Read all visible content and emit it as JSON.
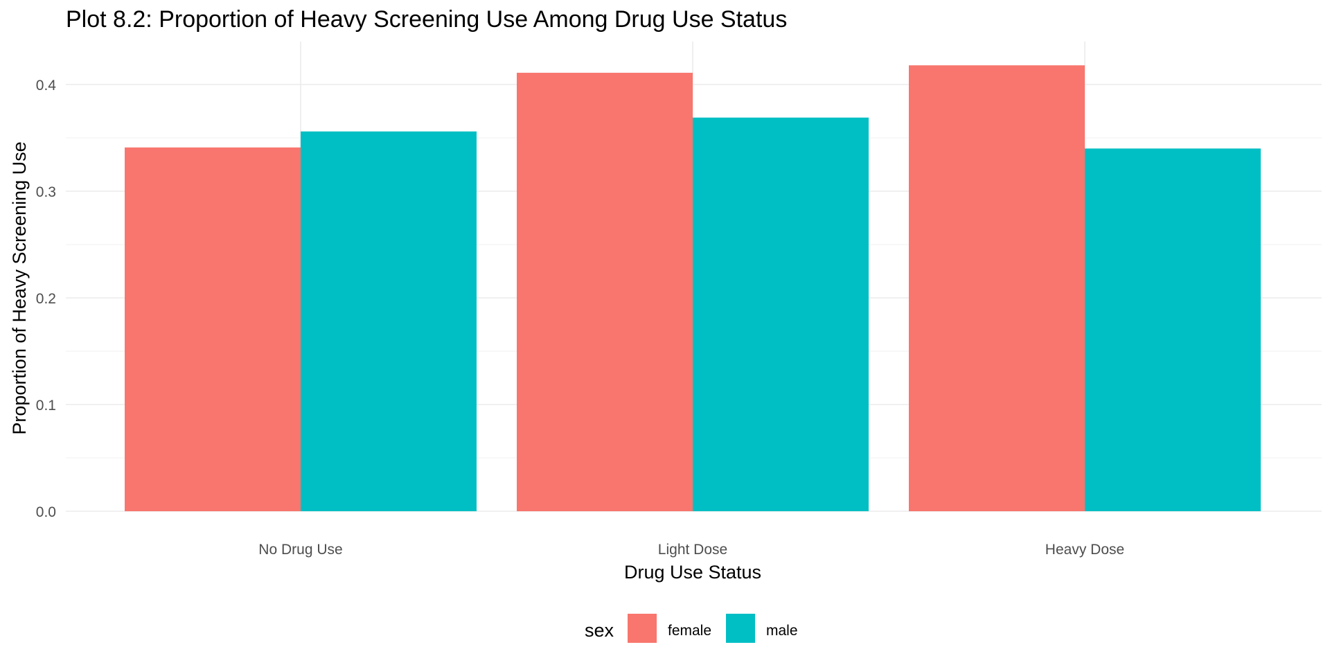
{
  "chart_data": {
    "type": "bar",
    "title": "Plot 8.2: Proportion of Heavy Screening Use Among Drug Use Status",
    "xlabel": "Drug Use Status",
    "ylabel": "Proportion of Heavy Screening Use",
    "categories": [
      "No Drug Use",
      "Light Dose",
      "Heavy Dose"
    ],
    "series": [
      {
        "name": "female",
        "color": "#F8766D",
        "values": [
          0.341,
          0.411,
          0.418
        ]
      },
      {
        "name": "male",
        "color": "#00BFC4",
        "values": [
          0.356,
          0.369,
          0.34
        ]
      }
    ],
    "yticks": [
      0.0,
      0.1,
      0.2,
      0.3,
      0.4
    ],
    "ytick_labels": [
      "0.0",
      "0.1",
      "0.2",
      "0.3",
      "0.4"
    ],
    "ylim": [
      0,
      0.44
    ],
    "grid": true,
    "legend": {
      "title": "sex",
      "position": "bottom"
    }
  }
}
